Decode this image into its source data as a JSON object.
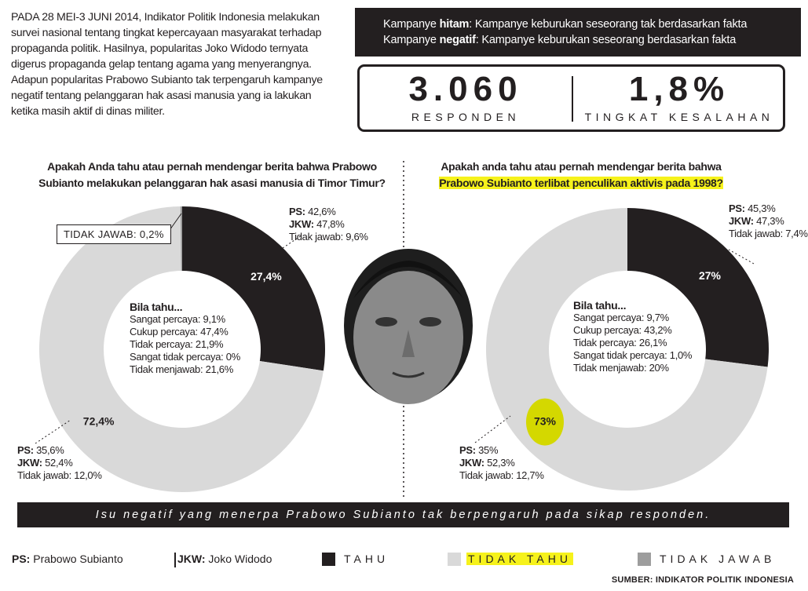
{
  "intro": "PADA 28 MEI-3 JUNI 2014, Indikator Politik Indonesia melakukan survei nasional tentang tingkat kepercayaan masyarakat terhadap propaganda politik. Hasilnya, popularitas Joko Widodo ternyata digerus propaganda gelap tentang agama yang menyerangnya. Adapun popularitas Prabowo Subianto tak terpengaruh kampanye negatif tentang pelanggaran hak asasi manusia yang ia lakukan ketika masih aktif di dinas militer.",
  "definitions": [
    {
      "prefix": "Kampanye",
      "term": "hitam",
      "text": ": Kampanye keburukan seseorang tak berdasarkan fakta"
    },
    {
      "prefix": "Kampanye",
      "term": "negatif",
      "text": ": Kampanye keburukan seseorang berdasarkan fakta"
    }
  ],
  "stats": [
    {
      "value": "3.060",
      "label": "RESPONDEN"
    },
    {
      "value": "1,8%",
      "label": "TINGKAT KESALAHAN"
    }
  ],
  "chart_data": [
    {
      "type": "pie",
      "title": "Apakah Anda tahu atau pernah mendengar berita bahwa Prabowo Subianto melakukan pelanggaran hak asasi manusia di Timor Timur?",
      "categories": [
        "TAHU",
        "TIDAK TAHU",
        "TIDAK JAWAB"
      ],
      "values": [
        27.4,
        72.4,
        0.2
      ],
      "value_labels": [
        "27,4%",
        "72,4%",
        "0,2%"
      ],
      "colors": [
        "#231f20",
        "#d9d9d9",
        "#9d9d9d"
      ],
      "legend_highlight": [
        null,
        "#f6f21b",
        null
      ],
      "callout_label": "TIDAK JAWAB:",
      "inner_title": "Bila tahu...",
      "inner_lines": [
        "Sangat percaya: 9,1%",
        "Cukup percaya: 47,4%",
        "Tidak percaya: 21,9%",
        "Sangat tidak percaya: 0%",
        "Tidak menjawab: 21,6%"
      ],
      "breakdowns": [
        [
          {
            "label": "PS:",
            "value": "42,6%"
          },
          {
            "label": "JKW:",
            "value": "47,8%"
          },
          {
            "label": "Tidak jawab:",
            "value": "9,6%"
          }
        ],
        [
          {
            "label": "PS:",
            "value": "35,6%"
          },
          {
            "label": "JKW:",
            "value": "52,4%"
          },
          {
            "label": "Tidak jawab:",
            "value": "12,0%"
          }
        ]
      ]
    },
    {
      "type": "pie",
      "title": "Apakah anda tahu atau pernah mendengar berita bahwa",
      "title_highlight": "Prabowo Subianto terlibat penculikan aktivis pada 1998?",
      "values": [
        27,
        73
      ],
      "value_labels": [
        "27%",
        "73%"
      ],
      "colors": [
        "#231f20",
        "#d9d9d9"
      ],
      "value_label_highlight": [
        null,
        "#d4d800"
      ],
      "inner_title": "Bila tahu...",
      "inner_lines": [
        "Sangat percaya: 9,7%",
        "Cukup percaya: 43,2%",
        "Tidak percaya: 26,1%",
        "Sangat tidak percaya: 1,0%",
        "Tidak menjawab: 20%"
      ],
      "breakdowns": [
        [
          {
            "label": "PS:",
            "value": "45,3%"
          },
          {
            "label": "JKW:",
            "value": "47,3%"
          },
          {
            "label": "Tidak jawab:",
            "value": "7,4%"
          }
        ],
        [
          {
            "label": "PS:",
            "value": "35%"
          },
          {
            "label": "JKW:",
            "value": "52,3%"
          },
          {
            "label": "Tidak jawab:",
            "value": "12,7%"
          }
        ]
      ]
    }
  ],
  "conclusion": "Isu negatif yang menerpa Prabowo Subianto tak berpengaruh pada sikap responden.",
  "abbreviations": [
    {
      "abbr": "PS:",
      "name": "Prabowo Subianto"
    },
    {
      "abbr": "JKW:",
      "name": "Joko Widodo"
    }
  ],
  "source": "SUMBER: INDIKATOR POLITIK INDONESIA"
}
